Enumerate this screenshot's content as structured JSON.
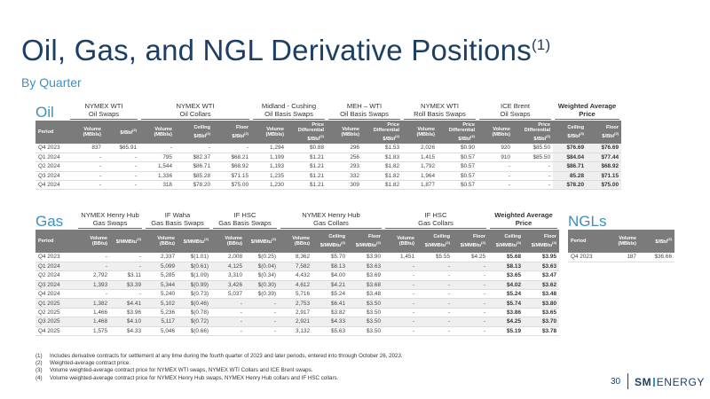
{
  "title": "Oil, Gas, and NGL Derivative Positions",
  "title_sup": "(1)",
  "subtitle": "By Quarter",
  "colors": {
    "navy": "#1c3f66",
    "accent_blue": "#3f8fc0",
    "header_gray": "#7b7b7b"
  },
  "oil": {
    "label": "Oil",
    "groups": [
      "NYMEX WTI\nOil Swaps",
      "NYMEX WTI\nOil Collars",
      "Midland - Cushing\nOil Basis Swaps",
      "MEH – WTI\nOil Basis Swaps",
      "NYMEX WTI\nRoll Basis Swaps",
      "ICE Brent\nOil Swaps",
      "Weighted Average\nPrice"
    ],
    "headers": [
      "Period",
      "Volume\n(MBbls)",
      "$/Bbl",
      "Volume\n(MBbls)",
      "Ceiling\n$/Bbl",
      "Floor\n$/Bbl",
      "Volume\n(MBbls)",
      "Price\nDifferential\n$/Bbl",
      "Volume\n(MBbls)",
      "Price\nDifferential\n$/Bbl",
      "Volume\n(MBbls)",
      "Price\nDifferential\n$/Bbl",
      "Volume\n(MBbls)",
      "Price\nDifferential\n$/Bbl",
      "Ceiling\n$/Bbl",
      "Floor\n$/Bbl"
    ],
    "header_sups": [
      "",
      "",
      "(2)",
      "",
      "(2)",
      "(2)",
      "",
      "(2)",
      "",
      "(2)",
      "",
      "(2)",
      "",
      "(2)",
      "(3)",
      "(3)"
    ],
    "rows": [
      [
        "Q4 2023",
        "837",
        "$65.91",
        "-",
        "-",
        "-",
        "1,294",
        "$0.88",
        "296",
        "$1.53",
        "2,026",
        "$0.90",
        "920",
        "$85.50",
        "$76.69",
        "$76.69"
      ],
      [
        "Q1 2024",
        "-",
        "-",
        "795",
        "$82.37",
        "$68.21",
        "1,199",
        "$1.21",
        "256",
        "$1.83",
        "1,415",
        "$0.57",
        "910",
        "$85.50",
        "$84.04",
        "$77.44"
      ],
      [
        "Q2 2024",
        "-",
        "-",
        "1,544",
        "$86.71",
        "$68.92",
        "1,193",
        "$1.21",
        "293",
        "$1.82",
        "1,792",
        "$0.57",
        "-",
        "-",
        "$86.71",
        "$68.92"
      ],
      [
        "Q3 2024",
        "-",
        "-",
        "1,336",
        "$85.28",
        "$71.15",
        "1,235",
        "$1.21",
        "332",
        "$1.82",
        "1,964",
        "$0.57",
        "-",
        "-",
        "85.28",
        "$71.15"
      ],
      [
        "Q4 2024",
        "-",
        "-",
        "318",
        "$78.20",
        "$75.00",
        "1,230",
        "$1.21",
        "309",
        "$1.82",
        "1,877",
        "$0.57",
        "-",
        "-",
        "$78.20",
        "$75.00"
      ]
    ]
  },
  "gas": {
    "label": "Gas",
    "groups": [
      "NYMEX Henry Hub\nGas Swaps",
      "IF Waha\nGas Basis Swaps",
      "IF HSC\nGas Basis Swaps",
      "NYMEX Henry Hub\nGas Collars",
      "IF HSC\nGas Collars",
      "Weighted Average\nPrice"
    ],
    "headers": [
      "Period",
      "Volume\n(BBtu)",
      "$/MMBtu",
      "Volume\n(BBtu)",
      "$/MMBtu",
      "Volume\n(BBtu)",
      "$/MMBtu",
      "Volume\n(BBtu)",
      "Ceiling\n$/MMBtu",
      "Floor\n$/MMBtu",
      "Volume\n(BBtu)",
      "Ceiling\n$/MMBtu",
      "Floor\n$/MMBtu",
      "Ceiling\n$/MMBtu",
      "Floor\n$/MMBtu"
    ],
    "header_sups": [
      "",
      "",
      "(2)",
      "",
      "(2)",
      "",
      "(2)",
      "",
      "(2)",
      "(2)",
      "",
      "(2)",
      "(2)",
      "(4)",
      "(4)"
    ],
    "rows": [
      [
        "Q4 2023",
        "-",
        "-",
        "2,337",
        "$(1.01)",
        "2,008",
        "$(0.25)",
        "8,362",
        "$5.70",
        "$3.90",
        "1,451",
        "$5.55",
        "$4.25",
        "$5.68",
        "$3.95"
      ],
      [
        "Q1 2024",
        "-",
        "-",
        "5,099",
        "$(0.61)",
        "4,125",
        "$(0.04)",
        "7,582",
        "$8.13",
        "$3.63",
        "-",
        "-",
        "-",
        "$8.13",
        "$3.63"
      ],
      [
        "Q2 2024",
        "2,792",
        "$3.11",
        "5,285",
        "$(1.09)",
        "3,310",
        "$(0.34)",
        "4,432",
        "$4.00",
        "$3.69",
        "-",
        "-",
        "-",
        "$3.65",
        "$3.47"
      ],
      [
        "Q3 2024",
        "1,393",
        "$3.39",
        "5,344",
        "$(0.99)",
        "3,426",
        "$(0.30)",
        "4,612",
        "$4.21",
        "$3.68",
        "-",
        "-",
        "-",
        "$4.02",
        "$3.62"
      ],
      [
        "Q4 2024",
        "-",
        "-",
        "5,240",
        "$(0.73)",
        "5,037",
        "$(0.39)",
        "5,716",
        "$5.24",
        "$3.48",
        "-",
        "-",
        "-",
        "$5.24",
        "$3.48"
      ],
      [
        "Q1 2025",
        "1,382",
        "$4.41",
        "5,102",
        "$(0.46)",
        "-",
        "-",
        "2,753",
        "$6.41",
        "$3.50",
        "-",
        "-",
        "-",
        "$5.74",
        "$3.80"
      ],
      [
        "Q2 2025",
        "1,466",
        "$3.96",
        "5,236",
        "$(0.78)",
        "-",
        "-",
        "2,917",
        "$3.82",
        "$3.50",
        "-",
        "-",
        "-",
        "$3.86",
        "$3.65"
      ],
      [
        "Q3 2025",
        "1,468",
        "$4.10",
        "5,117",
        "$(0.72)",
        "-",
        "-",
        "2,921",
        "$4.33",
        "$3.50",
        "-",
        "-",
        "-",
        "$4.25",
        "$3.70"
      ],
      [
        "Q4 2025",
        "1,575",
        "$4.33",
        "5,046",
        "$(0.66)",
        "-",
        "-",
        "3,132",
        "$5.63",
        "$3.50",
        "-",
        "-",
        "-",
        "$5.19",
        "$3.78"
      ]
    ]
  },
  "ngl": {
    "label": "NGLs",
    "groups": [
      "Propane Swaps"
    ],
    "headers": [
      "Period",
      "Volume\n(MBbls)",
      "$/Bbl"
    ],
    "header_sups": [
      "",
      "",
      "(2)"
    ],
    "rows": [
      [
        "Q4 2023",
        "187",
        "$36.66"
      ]
    ]
  },
  "footnotes": [
    {
      "num": "(1)",
      "text": "Includes derivative contracts for settlement at any time during the fourth quarter of 2023 and later periods, entered into through October 26, 2023."
    },
    {
      "num": "(2)",
      "text": "Weighted-average contract price."
    },
    {
      "num": "(3)",
      "text": "Volume weighted-average contract price for NYMEX WTI swaps, NYMEX WTI Collars and ICE Brent swaps."
    },
    {
      "num": "(4)",
      "text": "Volume weighted-average contract price for NYMEX Henry Hub swaps, NYMEX Henry Hub collars and IF HSC collars."
    }
  ],
  "page_number": "30",
  "logo": {
    "sm": "SM",
    "rest": "ENERGY"
  }
}
